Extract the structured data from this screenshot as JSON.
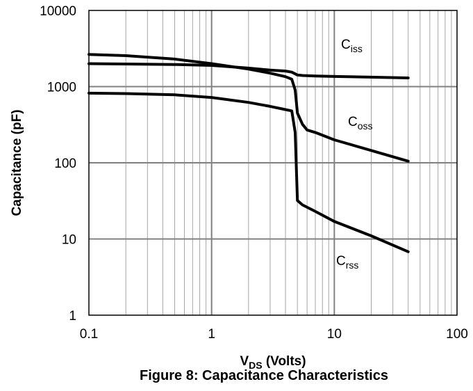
{
  "caption": "Figure 8: Capacitance Characteristics",
  "chart_data": {
    "type": "line",
    "x_scale": "log",
    "y_scale": "log",
    "xlim": [
      0.1,
      100
    ],
    "ylim": [
      1,
      10000
    ],
    "x_ticks": [
      "0.1",
      "1",
      "10",
      "100"
    ],
    "y_ticks": [
      "1",
      "10",
      "100",
      "1000",
      "10000"
    ],
    "ylabel": "Capacitance (pF)",
    "xlabel": {
      "main": "V",
      "sub": "DS",
      "rest": " (Volts)"
    },
    "grid": true,
    "legend": "inline labels next to curves",
    "series": [
      {
        "name": "Ciss",
        "label_main": "C",
        "label_sub": "iss",
        "x": [
          0.1,
          0.2,
          0.5,
          1,
          2,
          3,
          4,
          4.5,
          5,
          5.5,
          7,
          10,
          20,
          40
        ],
        "y": [
          2000,
          1980,
          1950,
          1900,
          1750,
          1650,
          1600,
          1550,
          1420,
          1400,
          1380,
          1360,
          1330,
          1300
        ]
      },
      {
        "name": "Coss",
        "label_main": "C",
        "label_sub": "oss",
        "x": [
          0.1,
          0.2,
          0.5,
          1,
          2,
          3,
          4,
          4.5,
          4.8,
          5,
          5.5,
          6,
          7,
          10,
          20,
          40
        ],
        "y": [
          2650,
          2550,
          2300,
          2000,
          1700,
          1500,
          1350,
          1250,
          900,
          450,
          320,
          270,
          250,
          200,
          145,
          105
        ]
      },
      {
        "name": "Crss",
        "label_main": "C",
        "label_sub": "rss",
        "x": [
          0.1,
          0.2,
          0.5,
          1,
          2,
          3,
          4,
          4.5,
          4.8,
          5,
          5.5,
          7,
          10,
          20,
          40
        ],
        "y": [
          820,
          810,
          780,
          720,
          620,
          550,
          500,
          480,
          250,
          32,
          28,
          23,
          17,
          11,
          6.8
        ]
      }
    ]
  }
}
